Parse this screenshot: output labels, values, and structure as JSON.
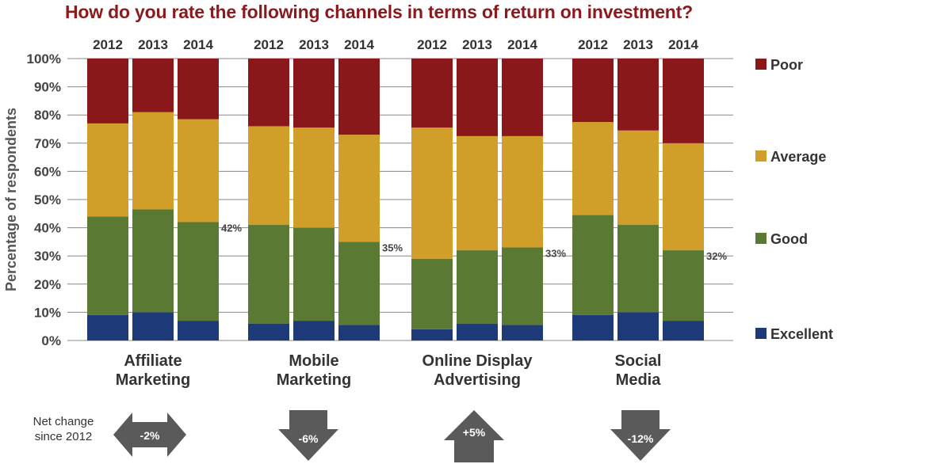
{
  "chart_data": {
    "type": "bar",
    "stacked": true,
    "title": "How do you rate the following channels in terms of return on investment?",
    "ylabel": "Percentage of respondents",
    "ylim": [
      0,
      100
    ],
    "yticks": [
      "0%",
      "10%",
      "20%",
      "30%",
      "40%",
      "50%",
      "60%",
      "70%",
      "80%",
      "90%",
      "100%"
    ],
    "grid": true,
    "legend_position": "right",
    "groups": [
      {
        "label_lines": [
          "Affiliate",
          "Marketing"
        ],
        "years": [
          "2012",
          "2013",
          "2014"
        ],
        "callout": "42%"
      },
      {
        "label_lines": [
          "Mobile",
          "Marketing"
        ],
        "years": [
          "2012",
          "2013",
          "2014"
        ],
        "callout": "35%"
      },
      {
        "label_lines": [
          "Online Display",
          "Advertising"
        ],
        "years": [
          "2012",
          "2013",
          "2014"
        ],
        "callout": "33%"
      },
      {
        "label_lines": [
          "Social",
          "Media"
        ],
        "years": [
          "2012",
          "2013",
          "2014"
        ],
        "callout": "32%"
      }
    ],
    "series": [
      {
        "name": "Excellent",
        "color": "#1f3a78",
        "values": [
          9,
          10,
          7,
          6,
          7,
          5.5,
          4,
          6,
          5.5,
          9,
          10,
          7
        ]
      },
      {
        "name": "Good",
        "color": "#5a7a34",
        "values": [
          35,
          36.5,
          35,
          35,
          33,
          29.5,
          25,
          26,
          27.5,
          35.5,
          31,
          25
        ]
      },
      {
        "name": "Average",
        "color": "#d19e2a",
        "values": [
          33,
          34.5,
          36.5,
          35,
          35.5,
          38,
          46.5,
          40.5,
          39.5,
          33,
          33.5,
          38
        ]
      },
      {
        "name": "Poor",
        "color": "#8a181b",
        "values": [
          23,
          19,
          21.5,
          24,
          24.5,
          27,
          24.5,
          27.5,
          27.5,
          22.5,
          25.5,
          30
        ]
      }
    ],
    "net_change_label_lines": [
      "Net change",
      "since 2012"
    ],
    "net_change": [
      {
        "value": "-2%",
        "direction": "both"
      },
      {
        "value": "-6%",
        "direction": "down"
      },
      {
        "value": "+5%",
        "direction": "up"
      },
      {
        "value": "-12%",
        "direction": "down"
      }
    ],
    "colors": {
      "title": "#8a1a1d",
      "arrow": "#5a5a5a",
      "grid": "#888888"
    }
  }
}
